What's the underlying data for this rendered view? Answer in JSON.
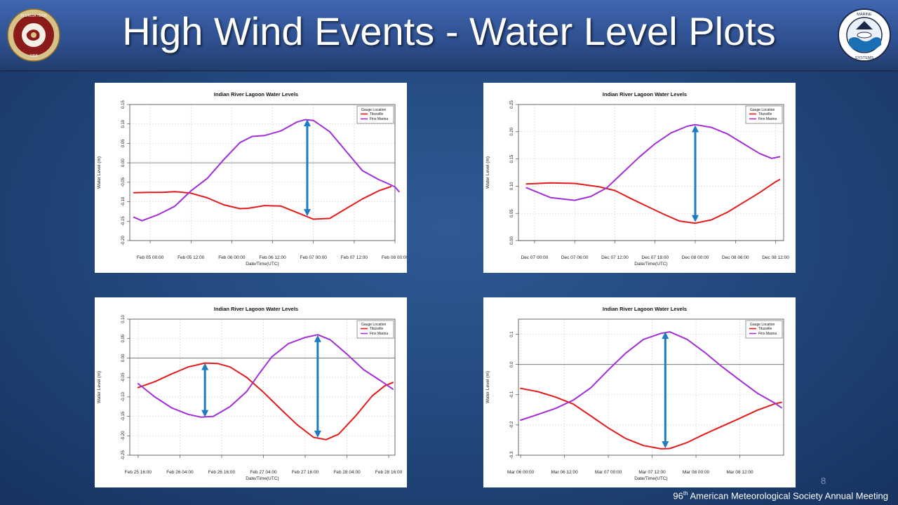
{
  "slide": {
    "title": "High Wind Events - Water Level Plots",
    "page_number": "8",
    "footer_ordinal": "96",
    "footer_suffix": "th",
    "footer_text": " American Meteorological Society Annual Meeting"
  },
  "logos": {
    "left": {
      "text": "FLORIDA INSTITUTE OF TECHNOLOGY",
      "year": "1958",
      "icon": "florida-tech-seal"
    },
    "right": {
      "text": "MARINE & ENVIRONMENTAL SYSTEMS",
      "icon": "marine-environmental-systems-seal"
    }
  },
  "colors": {
    "titusville": "#e41a1c",
    "fins_marina": "#a12fd9",
    "arrow": "#1f7bbf"
  },
  "chart_data": [
    {
      "type": "line",
      "title": "Indian River Lagoon Water Levels",
      "xlabel": "Date/Time(UTC)",
      "ylabel": "Water Level (m)",
      "legend_title": "Gauge Location",
      "legend_position": "top-right",
      "grid": true,
      "x_ticks": [
        "Feb 05 00:00",
        "Feb 05 12:00",
        "Feb 06 00:00",
        "Feb 06 12:00",
        "Feb 07 00:00",
        "Feb 07 12:00",
        "Feb 08 00:00"
      ],
      "x_range": [
        -0.5,
        6
      ],
      "y_ticks": [
        "-0.20",
        "-0.15",
        "-0.10",
        "-0.05",
        "0.00",
        "0.05",
        "0.10",
        "0.15"
      ],
      "ylim": [
        -0.2,
        0.15
      ],
      "series": [
        {
          "name": "Titusville",
          "color": "#e41a1c",
          "points": [
            [
              -0.4,
              -0.077
            ],
            [
              0,
              -0.076
            ],
            [
              0.3,
              -0.076
            ],
            [
              0.6,
              -0.074
            ],
            [
              1,
              -0.078
            ],
            [
              1.4,
              -0.09
            ],
            [
              1.8,
              -0.108
            ],
            [
              2.2,
              -0.118
            ],
            [
              2.4,
              -0.117
            ],
            [
              2.8,
              -0.11
            ],
            [
              3.2,
              -0.111
            ],
            [
              3.6,
              -0.128
            ],
            [
              4,
              -0.145
            ],
            [
              4.4,
              -0.143
            ],
            [
              4.8,
              -0.118
            ],
            [
              5.2,
              -0.093
            ],
            [
              5.6,
              -0.072
            ],
            [
              5.9,
              -0.061
            ]
          ]
        },
        {
          "name": "Fins Marina",
          "color": "#a12fd9",
          "points": [
            [
              -0.4,
              -0.14
            ],
            [
              -0.2,
              -0.149
            ],
            [
              0.2,
              -0.133
            ],
            [
              0.6,
              -0.112
            ],
            [
              1,
              -0.072
            ],
            [
              1.4,
              -0.04
            ],
            [
              1.8,
              0.008
            ],
            [
              2.2,
              0.052
            ],
            [
              2.5,
              0.068
            ],
            [
              2.8,
              0.07
            ],
            [
              3.2,
              0.082
            ],
            [
              3.6,
              0.105
            ],
            [
              3.8,
              0.111
            ],
            [
              4,
              0.109
            ],
            [
              4.4,
              0.08
            ],
            [
              4.8,
              0.03
            ],
            [
              5.2,
              -0.02
            ],
            [
              5.6,
              -0.043
            ],
            [
              5.8,
              -0.052
            ],
            [
              6,
              -0.062
            ],
            [
              6.1,
              -0.074
            ]
          ]
        }
      ],
      "arrows": [
        {
          "x": 3.85,
          "y1": 0.112,
          "y2": -0.137
        }
      ]
    },
    {
      "type": "line",
      "title": "Indian River Lagoon Water Levels",
      "xlabel": "Date/Time(UTC)",
      "ylabel": "Water Level (m)",
      "legend_title": "Gauge Location",
      "legend_position": "top-right",
      "grid": true,
      "x_ticks": [
        "Dec 07 00:00",
        "Dec 07 06:00",
        "Dec 07 12:00",
        "Dec 07 18:00",
        "Dec 08 00:00",
        "Dec 08 06:00",
        "Dec 08 12:00"
      ],
      "x_range": [
        -0.4,
        6.2
      ],
      "y_ticks": [
        "0.00",
        "0.05",
        "0.10",
        "0.15",
        "0.20",
        "0.25"
      ],
      "ylim": [
        0,
        0.25
      ],
      "series": [
        {
          "name": "Titusville",
          "color": "#e41a1c",
          "points": [
            [
              -0.2,
              0.104
            ],
            [
              0.4,
              0.106
            ],
            [
              1,
              0.105
            ],
            [
              1.6,
              0.099
            ],
            [
              2,
              0.092
            ],
            [
              2.4,
              0.077
            ],
            [
              2.8,
              0.063
            ],
            [
              3.2,
              0.049
            ],
            [
              3.6,
              0.036
            ],
            [
              4,
              0.032
            ],
            [
              4.4,
              0.038
            ],
            [
              4.8,
              0.052
            ],
            [
              5.2,
              0.07
            ],
            [
              5.6,
              0.088
            ],
            [
              6,
              0.108
            ],
            [
              6.1,
              0.112
            ]
          ]
        },
        {
          "name": "Fins Marina",
          "color": "#a12fd9",
          "points": [
            [
              -0.2,
              0.097
            ],
            [
              0.4,
              0.079
            ],
            [
              1,
              0.074
            ],
            [
              1.4,
              0.081
            ],
            [
              1.8,
              0.097
            ],
            [
              2.2,
              0.125
            ],
            [
              2.6,
              0.153
            ],
            [
              3,
              0.178
            ],
            [
              3.4,
              0.198
            ],
            [
              3.8,
              0.21
            ],
            [
              4,
              0.213
            ],
            [
              4.4,
              0.208
            ],
            [
              4.8,
              0.196
            ],
            [
              5.2,
              0.178
            ],
            [
              5.6,
              0.16
            ],
            [
              5.9,
              0.151
            ],
            [
              6.1,
              0.154
            ]
          ]
        }
      ],
      "arrows": [
        {
          "x": 4.0,
          "y1": 0.212,
          "y2": 0.034
        }
      ]
    },
    {
      "type": "line",
      "title": "Indian River Lagoon Water Levels",
      "xlabel": "Date/Time(UTC)",
      "ylabel": "Water Level (m)",
      "legend_title": "Gauge Location",
      "legend_position": "top-right",
      "grid": true,
      "x_ticks": [
        "Feb 25 16:00",
        "Feb 26 04:00",
        "Feb 26 16:00",
        "Feb 27 04:00",
        "Feb 27 16:00",
        "Feb 28 04:00",
        "Feb 28 16:00"
      ],
      "x_range": [
        -0.2,
        6.15
      ],
      "y_ticks": [
        "-0.25",
        "-0.20",
        "-0.15",
        "-0.10",
        "-0.05",
        "0.00",
        "0.05",
        "0.10"
      ],
      "ylim": [
        -0.25,
        0.1
      ],
      "series": [
        {
          "name": "Titusville",
          "color": "#e41a1c",
          "points": [
            [
              0,
              -0.076
            ],
            [
              0.4,
              -0.061
            ],
            [
              0.8,
              -0.041
            ],
            [
              1.2,
              -0.023
            ],
            [
              1.6,
              -0.013
            ],
            [
              1.9,
              -0.014
            ],
            [
              2.2,
              -0.023
            ],
            [
              2.6,
              -0.05
            ],
            [
              3,
              -0.088
            ],
            [
              3.4,
              -0.13
            ],
            [
              3.8,
              -0.171
            ],
            [
              4.2,
              -0.204
            ],
            [
              4.5,
              -0.21
            ],
            [
              4.8,
              -0.196
            ],
            [
              5.2,
              -0.15
            ],
            [
              5.6,
              -0.098
            ],
            [
              5.9,
              -0.072
            ],
            [
              6.1,
              -0.063
            ]
          ]
        },
        {
          "name": "Fins Marina",
          "color": "#a12fd9",
          "points": [
            [
              0,
              -0.066
            ],
            [
              0.4,
              -0.1
            ],
            [
              0.8,
              -0.128
            ],
            [
              1.2,
              -0.145
            ],
            [
              1.5,
              -0.152
            ],
            [
              1.8,
              -0.15
            ],
            [
              2.2,
              -0.125
            ],
            [
              2.6,
              -0.086
            ],
            [
              2.9,
              -0.04
            ],
            [
              3.2,
              0.003
            ],
            [
              3.6,
              0.037
            ],
            [
              4,
              0.053
            ],
            [
              4.3,
              0.06
            ],
            [
              4.6,
              0.047
            ],
            [
              5,
              0.01
            ],
            [
              5.4,
              -0.03
            ],
            [
              5.8,
              -0.058
            ],
            [
              6.1,
              -0.08
            ]
          ]
        }
      ],
      "arrows": [
        {
          "x": 1.6,
          "y1": -0.013,
          "y2": -0.152
        },
        {
          "x": 4.3,
          "y1": 0.059,
          "y2": -0.205
        }
      ]
    },
    {
      "type": "line",
      "title": "Indian River Lagoon Water Levels",
      "xlabel": "Date/Time(UTC)",
      "ylabel": "Water Level (m)",
      "legend_title": "Gauge Location",
      "legend_position": "top-right",
      "grid": true,
      "x_ticks": [
        "Mar 06 00:00",
        "Mar 06 12:00",
        "Mar 07 00:00",
        "Mar 07 12:00",
        "Mar 08 00:00",
        "Mar 08 12:00"
      ],
      "x_range": [
        -0.05,
        6
      ],
      "y_ticks": [
        "-0.3",
        "-0.2",
        "-0.1",
        "0.0",
        "0.1"
      ],
      "ylim": [
        -0.3,
        0.15
      ],
      "series": [
        {
          "name": "Titusville",
          "color": "#e41a1c",
          "points": [
            [
              0,
              -0.079
            ],
            [
              0.4,
              -0.09
            ],
            [
              0.8,
              -0.108
            ],
            [
              1.2,
              -0.131
            ],
            [
              1.6,
              -0.17
            ],
            [
              2,
              -0.21
            ],
            [
              2.4,
              -0.245
            ],
            [
              2.8,
              -0.268
            ],
            [
              3.2,
              -0.279
            ],
            [
              3.4,
              -0.278
            ],
            [
              3.8,
              -0.258
            ],
            [
              4.2,
              -0.23
            ],
            [
              4.6,
              -0.204
            ],
            [
              5,
              -0.178
            ],
            [
              5.4,
              -0.151
            ],
            [
              5.8,
              -0.13
            ],
            [
              5.95,
              -0.125
            ]
          ]
        },
        {
          "name": "Fins Marina",
          "color": "#a12fd9",
          "points": [
            [
              0,
              -0.184
            ],
            [
              0.4,
              -0.165
            ],
            [
              0.8,
              -0.145
            ],
            [
              1.2,
              -0.118
            ],
            [
              1.6,
              -0.077
            ],
            [
              2,
              -0.018
            ],
            [
              2.4,
              0.038
            ],
            [
              2.8,
              0.083
            ],
            [
              3.2,
              0.103
            ],
            [
              3.4,
              0.108
            ],
            [
              3.8,
              0.083
            ],
            [
              4.2,
              0.04
            ],
            [
              4.6,
              -0.008
            ],
            [
              5,
              -0.052
            ],
            [
              5.4,
              -0.095
            ],
            [
              5.8,
              -0.128
            ],
            [
              5.95,
              -0.143
            ]
          ]
        }
      ],
      "arrows": [
        {
          "x": 3.3,
          "y1": 0.108,
          "y2": -0.277
        }
      ]
    }
  ]
}
